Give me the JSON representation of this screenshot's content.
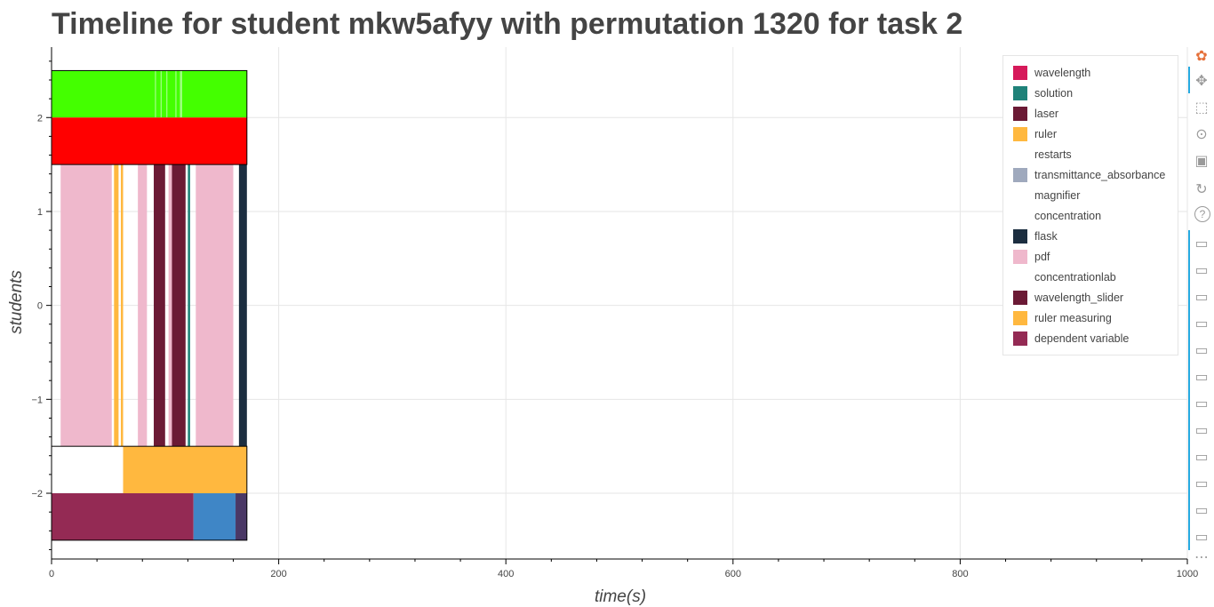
{
  "chart_data": {
    "type": "timeline",
    "title": "Timeline for student mkw5afyy with permutation 1320 for task 2",
    "xlabel": "time(s)",
    "ylabel": "students",
    "xlim": [
      0,
      1000
    ],
    "ylim": [
      -2.7,
      2.75
    ],
    "x_ticks": [
      0,
      200,
      400,
      600,
      800,
      1000
    ],
    "y_ticks": [
      -2,
      -1,
      0,
      1,
      2
    ],
    "grid": true,
    "legend_position": "top-right",
    "legend": [
      {
        "label": "wavelength",
        "color": "#d6195a"
      },
      {
        "label": "solution",
        "color": "#1f8279"
      },
      {
        "label": "laser",
        "color": "#6b1a35"
      },
      {
        "label": "ruler",
        "color": "#ffb83f"
      },
      {
        "label": "restarts",
        "color": null
      },
      {
        "label": "transmittance_absorbance",
        "color": "#9fa9bd"
      },
      {
        "label": "magnifier",
        "color": null
      },
      {
        "label": "concentration",
        "color": null
      },
      {
        "label": "flask",
        "color": "#1c2e40"
      },
      {
        "label": "pdf",
        "color": "#efb8cc"
      },
      {
        "label": "concentrationlab",
        "color": null
      },
      {
        "label": "wavelength_slider",
        "color": "#6b1a35"
      },
      {
        "label": "ruler measuring",
        "color": "#ffb83f"
      },
      {
        "label": "dependent variable",
        "color": "#942a54"
      }
    ],
    "rows": [
      {
        "y_range": [
          2.0,
          2.5
        ],
        "segments": [
          {
            "start": 0,
            "end": 172,
            "color": "#44ff00"
          },
          {
            "start": 91,
            "end": 92,
            "color": "#9dff80"
          },
          {
            "start": 96,
            "end": 97,
            "color": "#9dff80"
          },
          {
            "start": 101,
            "end": 102,
            "color": "#9dff80"
          },
          {
            "start": 109,
            "end": 110,
            "color": "#9dff80"
          },
          {
            "start": 113,
            "end": 115,
            "color": "#9dff80"
          }
        ]
      },
      {
        "y_range": [
          1.5,
          2.0
        ],
        "segments": [
          {
            "start": 0,
            "end": 172,
            "color": "#ff0000"
          }
        ]
      },
      {
        "y_range": [
          -1.5,
          1.5
        ],
        "segments": [
          {
            "start": 8,
            "end": 53,
            "color": "#efb8cc"
          },
          {
            "start": 55,
            "end": 59,
            "color": "#ffb83f"
          },
          {
            "start": 61,
            "end": 63,
            "color": "#ffb83f"
          },
          {
            "start": 76,
            "end": 84,
            "color": "#efb8cc"
          },
          {
            "start": 90,
            "end": 100,
            "color": "#6b1a35"
          },
          {
            "start": 103,
            "end": 106,
            "color": "#efb8cc"
          },
          {
            "start": 106,
            "end": 118,
            "color": "#6b1a35"
          },
          {
            "start": 120,
            "end": 122,
            "color": "#1f8279"
          },
          {
            "start": 127,
            "end": 160,
            "color": "#efb8cc"
          },
          {
            "start": 165,
            "end": 172,
            "color": "#1c2e40"
          }
        ]
      },
      {
        "y_range": [
          -2.0,
          -1.5
        ],
        "segments": [
          {
            "start": 63,
            "end": 172,
            "color": "#ffb83f"
          }
        ]
      },
      {
        "y_range": [
          -2.5,
          -2.0
        ],
        "segments": [
          {
            "start": 0,
            "end": 125,
            "color": "#942a54"
          },
          {
            "start": 125,
            "end": 162,
            "color": "#3f86c6"
          },
          {
            "start": 162,
            "end": 172,
            "color": "#4a3866"
          }
        ]
      }
    ],
    "outlined_ranges": [
      [
        1.5,
        2.5
      ],
      [
        -2.5,
        -1.5
      ]
    ]
  },
  "toolbar": {
    "tools": [
      "bokeh-logo-icon",
      "pan-icon",
      "box-zoom-icon",
      "wheel-zoom-icon",
      "save-icon",
      "reset-icon",
      "help-icon",
      "hover-icon",
      "hover-icon",
      "hover-icon",
      "hover-icon",
      "hover-icon",
      "hover-icon",
      "hover-icon",
      "hover-icon",
      "hover-icon",
      "hover-icon",
      "hover-icon",
      "hover-icon"
    ],
    "more": "⋯"
  }
}
